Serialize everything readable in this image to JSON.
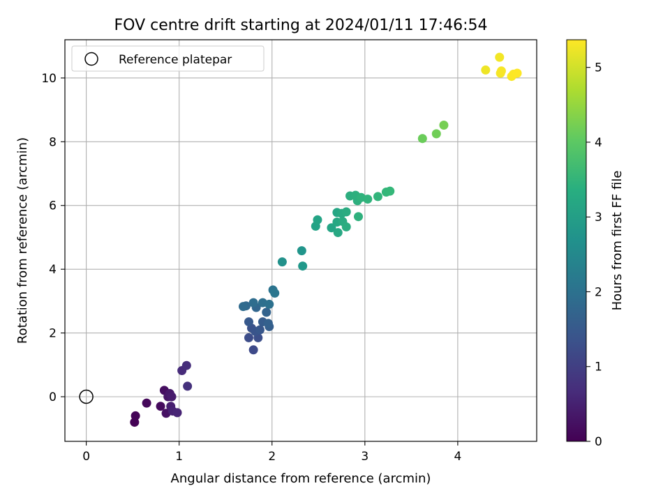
{
  "chart_data": {
    "type": "scatter",
    "title": "FOV centre drift starting at 2024/01/11 17:46:54",
    "xlabel": "Angular distance from reference (arcmin)",
    "ylabel": "Rotation from reference (arcmin)",
    "xlim": [
      -0.23,
      4.85
    ],
    "ylim": [
      -1.4,
      11.2
    ],
    "x_ticks": [
      0,
      1,
      2,
      3,
      4
    ],
    "y_ticks": [
      0,
      2,
      4,
      6,
      8,
      10
    ],
    "grid": true,
    "colormap": "viridis",
    "colorbar": {
      "label": "Hours from first FF file",
      "range": [
        0,
        5.37
      ],
      "ticks": [
        0,
        1,
        2,
        3,
        4,
        5
      ]
    },
    "legend": {
      "position": "top-left",
      "entries": [
        "Reference platepar"
      ]
    },
    "reference_point": {
      "x": 0,
      "y": 0,
      "label": "Reference platepar"
    },
    "points": [
      {
        "x": 0.52,
        "y": -0.8,
        "c": 0.02
      },
      {
        "x": 0.53,
        "y": -0.6,
        "c": 0.05
      },
      {
        "x": 0.65,
        "y": -0.2,
        "c": 0.1
      },
      {
        "x": 0.8,
        "y": -0.3,
        "c": 0.15
      },
      {
        "x": 0.84,
        "y": 0.2,
        "c": 0.2
      },
      {
        "x": 0.86,
        "y": -0.52,
        "c": 0.25
      },
      {
        "x": 0.88,
        "y": 0.0,
        "c": 0.3
      },
      {
        "x": 0.9,
        "y": 0.1,
        "c": 0.35
      },
      {
        "x": 0.92,
        "y": 0.0,
        "c": 0.4
      },
      {
        "x": 0.91,
        "y": -0.3,
        "c": 0.45
      },
      {
        "x": 0.93,
        "y": -0.45,
        "c": 0.5
      },
      {
        "x": 0.98,
        "y": -0.5,
        "c": 0.55
      },
      {
        "x": 1.03,
        "y": 0.82,
        "c": 0.65
      },
      {
        "x": 1.08,
        "y": 0.98,
        "c": 0.7
      },
      {
        "x": 1.09,
        "y": 0.33,
        "c": 0.75
      },
      {
        "x": 1.8,
        "y": 1.47,
        "c": 1.2
      },
      {
        "x": 1.75,
        "y": 1.85,
        "c": 1.25
      },
      {
        "x": 1.85,
        "y": 1.85,
        "c": 1.3
      },
      {
        "x": 1.78,
        "y": 2.15,
        "c": 1.35
      },
      {
        "x": 1.82,
        "y": 2.05,
        "c": 1.4
      },
      {
        "x": 1.87,
        "y": 2.1,
        "c": 1.45
      },
      {
        "x": 1.75,
        "y": 2.35,
        "c": 1.5
      },
      {
        "x": 1.9,
        "y": 2.35,
        "c": 1.55
      },
      {
        "x": 1.97,
        "y": 2.2,
        "c": 1.6
      },
      {
        "x": 1.96,
        "y": 2.3,
        "c": 1.65
      },
      {
        "x": 1.94,
        "y": 2.65,
        "c": 1.7
      },
      {
        "x": 1.83,
        "y": 2.8,
        "c": 1.75
      },
      {
        "x": 1.72,
        "y": 2.85,
        "c": 1.8
      },
      {
        "x": 1.69,
        "y": 2.83,
        "c": 1.85
      },
      {
        "x": 1.8,
        "y": 2.95,
        "c": 1.9
      },
      {
        "x": 1.9,
        "y": 2.95,
        "c": 1.95
      },
      {
        "x": 1.97,
        "y": 2.9,
        "c": 2.0
      },
      {
        "x": 2.01,
        "y": 3.35,
        "c": 2.05
      },
      {
        "x": 2.03,
        "y": 3.25,
        "c": 2.1
      },
      {
        "x": 2.11,
        "y": 4.23,
        "c": 2.7
      },
      {
        "x": 2.32,
        "y": 4.58,
        "c": 2.8
      },
      {
        "x": 2.33,
        "y": 4.1,
        "c": 2.85
      },
      {
        "x": 2.47,
        "y": 5.35,
        "c": 3.1
      },
      {
        "x": 2.49,
        "y": 5.55,
        "c": 3.12
      },
      {
        "x": 2.64,
        "y": 5.3,
        "c": 3.15
      },
      {
        "x": 2.7,
        "y": 5.78,
        "c": 3.18
      },
      {
        "x": 2.7,
        "y": 5.48,
        "c": 3.2
      },
      {
        "x": 2.71,
        "y": 5.15,
        "c": 3.22
      },
      {
        "x": 2.75,
        "y": 5.75,
        "c": 3.25
      },
      {
        "x": 2.76,
        "y": 5.5,
        "c": 3.28
      },
      {
        "x": 2.8,
        "y": 5.8,
        "c": 3.3
      },
      {
        "x": 2.8,
        "y": 5.33,
        "c": 3.32
      },
      {
        "x": 2.84,
        "y": 6.3,
        "c": 3.35
      },
      {
        "x": 2.9,
        "y": 6.32,
        "c": 3.38
      },
      {
        "x": 2.92,
        "y": 6.15,
        "c": 3.4
      },
      {
        "x": 2.93,
        "y": 5.65,
        "c": 3.42
      },
      {
        "x": 2.96,
        "y": 6.25,
        "c": 3.45
      },
      {
        "x": 3.03,
        "y": 6.2,
        "c": 3.48
      },
      {
        "x": 3.14,
        "y": 6.28,
        "c": 3.5
      },
      {
        "x": 3.23,
        "y": 6.42,
        "c": 3.55
      },
      {
        "x": 3.27,
        "y": 6.45,
        "c": 3.58
      },
      {
        "x": 3.62,
        "y": 8.1,
        "c": 4.15
      },
      {
        "x": 3.77,
        "y": 8.25,
        "c": 4.2
      },
      {
        "x": 3.85,
        "y": 8.52,
        "c": 4.25
      },
      {
        "x": 4.3,
        "y": 10.25,
        "c": 5.25
      },
      {
        "x": 4.45,
        "y": 10.65,
        "c": 5.28
      },
      {
        "x": 4.46,
        "y": 10.15,
        "c": 5.3
      },
      {
        "x": 4.47,
        "y": 10.22,
        "c": 5.32
      },
      {
        "x": 4.58,
        "y": 10.05,
        "c": 5.34
      },
      {
        "x": 4.6,
        "y": 10.12,
        "c": 5.35
      },
      {
        "x": 4.64,
        "y": 10.15,
        "c": 5.37
      }
    ]
  }
}
